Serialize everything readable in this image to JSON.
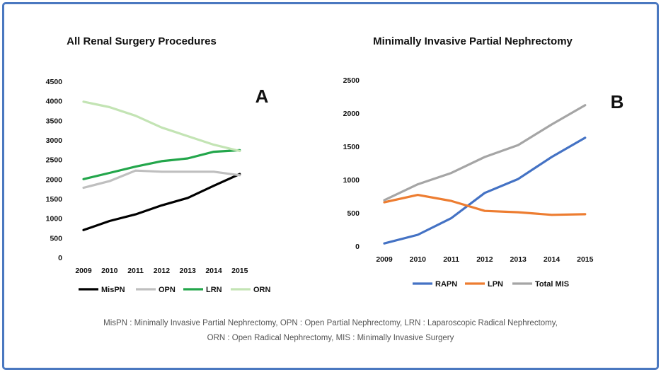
{
  "chart_data": [
    {
      "type": "line",
      "title": "All Renal Surgery Procedures",
      "panel_letter": "A",
      "x": [
        "2009",
        "2010",
        "2011",
        "2012",
        "2013",
        "2014",
        "2015"
      ],
      "ylim": [
        0,
        4500
      ],
      "yticks": [
        "0",
        "500",
        "1000",
        "1500",
        "2000",
        "2500",
        "3000",
        "3500",
        "4000",
        "4500"
      ],
      "grid": false,
      "legend": "bottom",
      "series": [
        {
          "name": "MisPN",
          "color": "#000000",
          "values": [
            700,
            930,
            1100,
            1330,
            1520,
            1830,
            2130
          ]
        },
        {
          "name": "OPN",
          "color": "#bfbfbf",
          "values": [
            1780,
            1950,
            2220,
            2190,
            2190,
            2190,
            2100
          ]
        },
        {
          "name": "LRN",
          "color": "#23a64b",
          "values": [
            2000,
            2160,
            2320,
            2460,
            2530,
            2700,
            2740
          ]
        },
        {
          "name": "ORN",
          "color": "#c3e4b4",
          "values": [
            3980,
            3840,
            3620,
            3320,
            3100,
            2880,
            2720
          ]
        }
      ]
    },
    {
      "type": "line",
      "title": "Minimally Invasive Partial Nephrectomy",
      "panel_letter": "B",
      "x": [
        "2009",
        "2010",
        "2011",
        "2012",
        "2013",
        "2014",
        "2015"
      ],
      "ylim": [
        0,
        2500
      ],
      "yticks": [
        "0",
        "500",
        "1000",
        "1500",
        "2000",
        "2500"
      ],
      "grid": false,
      "legend": "bottom",
      "series": [
        {
          "name": "RAPN",
          "color": "#4472c4",
          "values": [
            40,
            170,
            420,
            800,
            1010,
            1340,
            1630
          ]
        },
        {
          "name": "LPN",
          "color": "#ed7d31",
          "values": [
            660,
            770,
            680,
            530,
            510,
            470,
            480
          ]
        },
        {
          "name": "Total MIS",
          "color": "#a5a5a5",
          "values": [
            690,
            930,
            1100,
            1340,
            1520,
            1830,
            2120
          ]
        }
      ]
    }
  ],
  "footnote": {
    "line1": "MisPN : Minimally Invasive Partial Nephrectomy, OPN : Open Partial Nephrectomy, LRN : Laparoscopic Radical Nephrectomy,",
    "line2": "ORN : Open Radical Nephrectomy, MIS : Minimally Invasive Surgery"
  }
}
